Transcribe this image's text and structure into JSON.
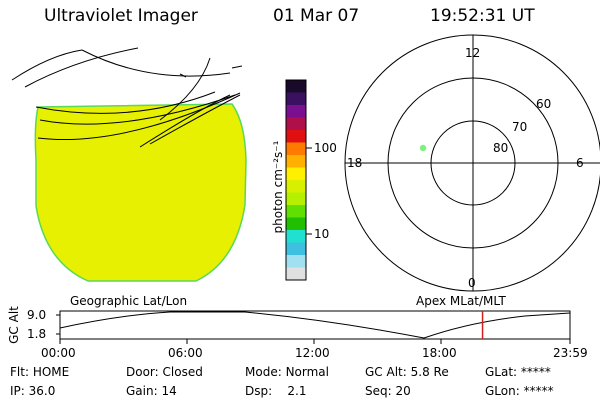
{
  "header": {
    "instrument": "Ultraviolet Imager",
    "date": "01 Mar 07",
    "time": "19:52:31 UT"
  },
  "colorbar": {
    "label": "photon cm⁻²s⁻¹",
    "ticks": [
      "100",
      "10"
    ],
    "colors": [
      "#1a0a2a",
      "#3a1060",
      "#7a1090",
      "#b0104a",
      "#e01010",
      "#ff7a00",
      "#ffb000",
      "#fff000",
      "#d8f000",
      "#b4f000",
      "#60e000",
      "#20c000",
      "#20e0d0",
      "#40c0e0",
      "#a0e0f0",
      "#e0e0e0"
    ]
  },
  "image": {
    "fill_color": "#e6f000",
    "edge_color": "#5ad85a",
    "grid_label": "Geographic Lat/Lon"
  },
  "polar": {
    "label": "Apex MLat/MLT",
    "mlt_labels": [
      "12",
      "18",
      "6",
      "0"
    ],
    "lat_labels": [
      "60",
      "70",
      "80"
    ],
    "point_color": "#7ef07e"
  },
  "altitude_plot": {
    "ylabel": "GC Alt",
    "yticks": [
      "9.0",
      "1.8"
    ],
    "xticks": [
      "00:00",
      "06:00",
      "12:00",
      "18:00",
      "23:59"
    ],
    "marker_color": "#d02020",
    "marker_time_hours": 19.87
  },
  "status": {
    "filter_label": "Flt:",
    "filter_value": "HOME",
    "ip_label": "IP:",
    "ip_value": "36.0",
    "door_label": "Door:",
    "door_value": "Closed",
    "gain_label": "Gain:",
    "gain_value": "14",
    "mode_label": "Mode:",
    "mode_value": "Normal",
    "dsp_label": "Dsp:",
    "dsp_value": "2.1",
    "gcalt_label": "GC Alt:",
    "gcalt_value": "5.8 Re",
    "seq_label": "Seq:",
    "seq_value": "20",
    "glat_label": "GLat:",
    "glat_value": "*****",
    "glon_label": "GLon:",
    "glon_value": "*****"
  }
}
